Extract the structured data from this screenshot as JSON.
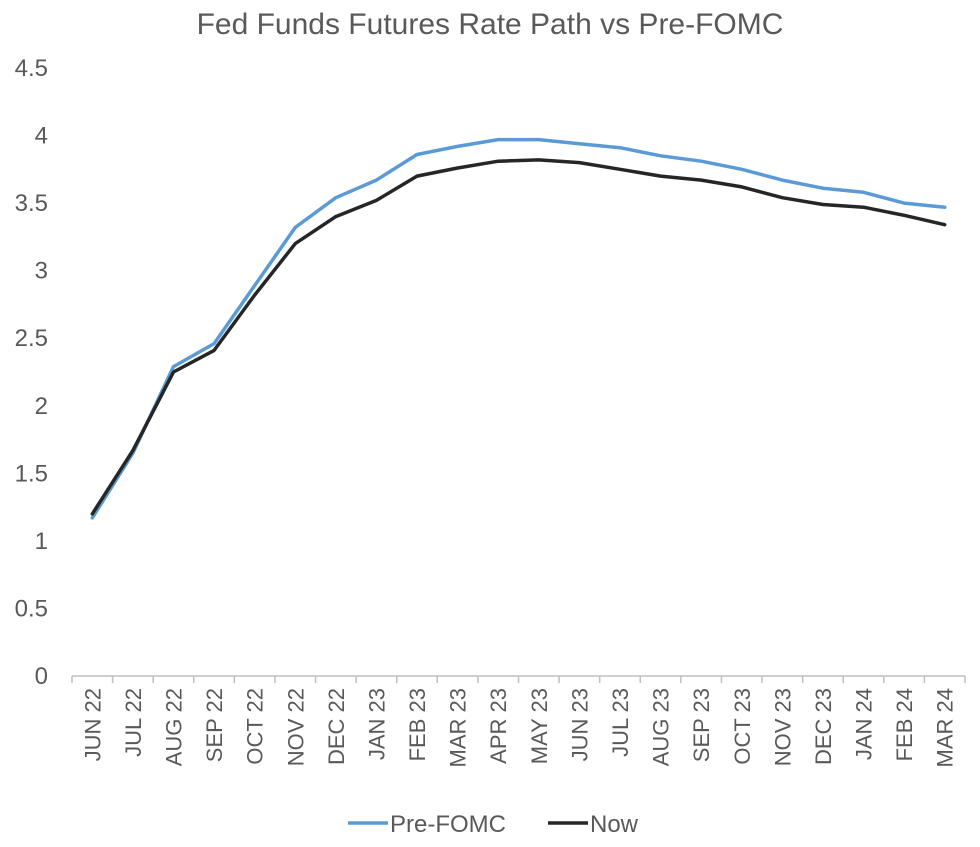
{
  "chart_data": {
    "type": "line",
    "title": "Fed Funds Futures Rate Path vs Pre-FOMC",
    "xlabel": "",
    "ylabel": "",
    "categories": [
      "JUN 22",
      "JUL 22",
      "AUG 22",
      "SEP 22",
      "OCT 22",
      "NOV 22",
      "DEC 22",
      "JAN 23",
      "FEB 23",
      "MAR 23",
      "APR 23",
      "MAY 23",
      "JUN 23",
      "JUL 23",
      "AUG 23",
      "SEP 23",
      "OCT 23",
      "NOV 23",
      "DEC 23",
      "JAN 24",
      "FEB 24",
      "MAR 24"
    ],
    "ylim": [
      0,
      4.5
    ],
    "yticks": [
      "0",
      "0.5",
      "1",
      "1.5",
      "2",
      "2.5",
      "3",
      "3.5",
      "4",
      "4.5"
    ],
    "grid": false,
    "legend_position": "bottom",
    "series": [
      {
        "name": "Pre-FOMC",
        "color": "#5B9BD5",
        "values": [
          1.17,
          1.65,
          2.29,
          2.46,
          2.89,
          3.32,
          3.54,
          3.67,
          3.86,
          3.92,
          3.97,
          3.97,
          3.94,
          3.91,
          3.85,
          3.81,
          3.75,
          3.67,
          3.61,
          3.58,
          3.5,
          3.47
        ]
      },
      {
        "name": "Now",
        "color": "#262626",
        "values": [
          1.2,
          1.67,
          2.25,
          2.41,
          2.82,
          3.2,
          3.4,
          3.52,
          3.7,
          3.76,
          3.81,
          3.82,
          3.8,
          3.75,
          3.7,
          3.67,
          3.62,
          3.54,
          3.49,
          3.47,
          3.41,
          3.34
        ]
      }
    ]
  }
}
